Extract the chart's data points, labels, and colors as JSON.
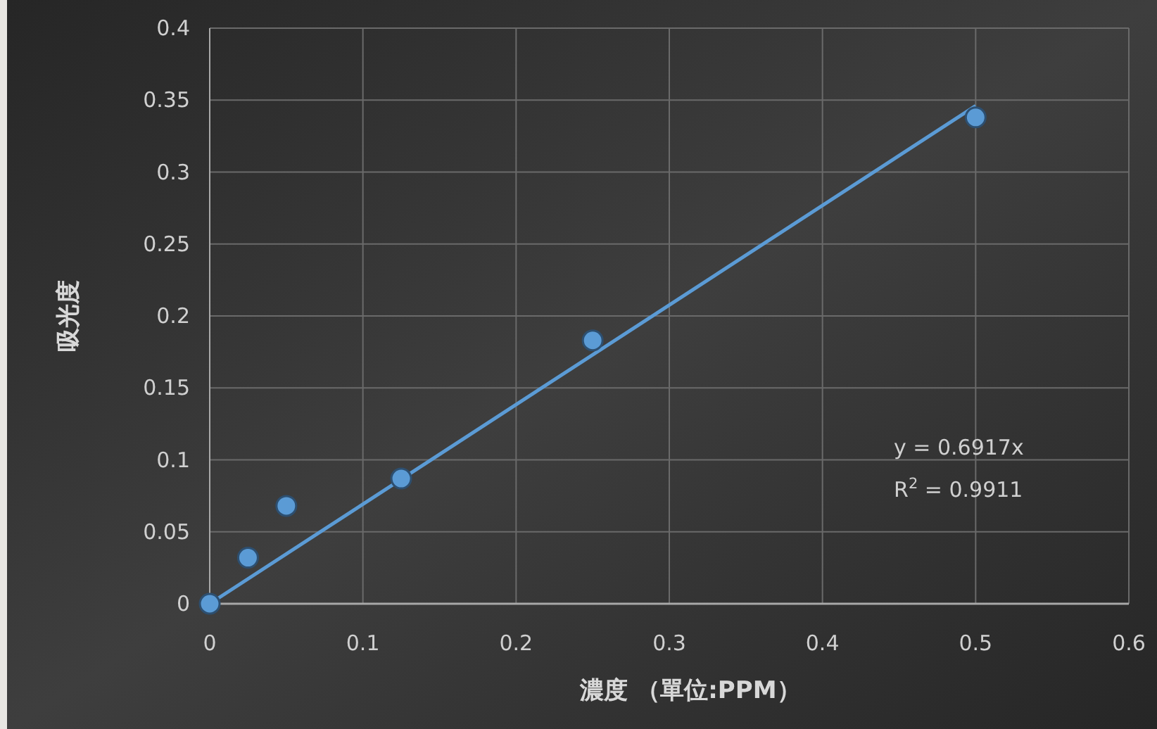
{
  "chart_data": {
    "type": "scatter",
    "xlabel": "濃度 （單位:PPM）",
    "ylabel": "吸光度",
    "xlim": [
      0,
      0.6
    ],
    "xticks": [
      0,
      0.1,
      0.2,
      0.3,
      0.4,
      0.5,
      0.6
    ],
    "ylim": [
      0,
      0.4
    ],
    "yticks": [
      0,
      0.05,
      0.1,
      0.15,
      0.2,
      0.25,
      0.3,
      0.35,
      0.4
    ],
    "grid": true,
    "marker": "circle",
    "series": [
      {
        "type": "scatter",
        "color": "#5b9bd5",
        "x": [
          0,
          0.025,
          0.05,
          0.125,
          0.25,
          0.5
        ],
        "values": [
          0,
          0.032,
          0.068,
          0.087,
          0.183,
          0.338
        ]
      },
      {
        "type": "line",
        "color": "#5b9bd5",
        "marker": "none",
        "x": [
          0,
          0.5
        ],
        "values": [
          0,
          0.346
        ]
      }
    ],
    "annotations": [
      "y = 0.6917x",
      "R$^{2}$ = 0.9911"
    ]
  }
}
